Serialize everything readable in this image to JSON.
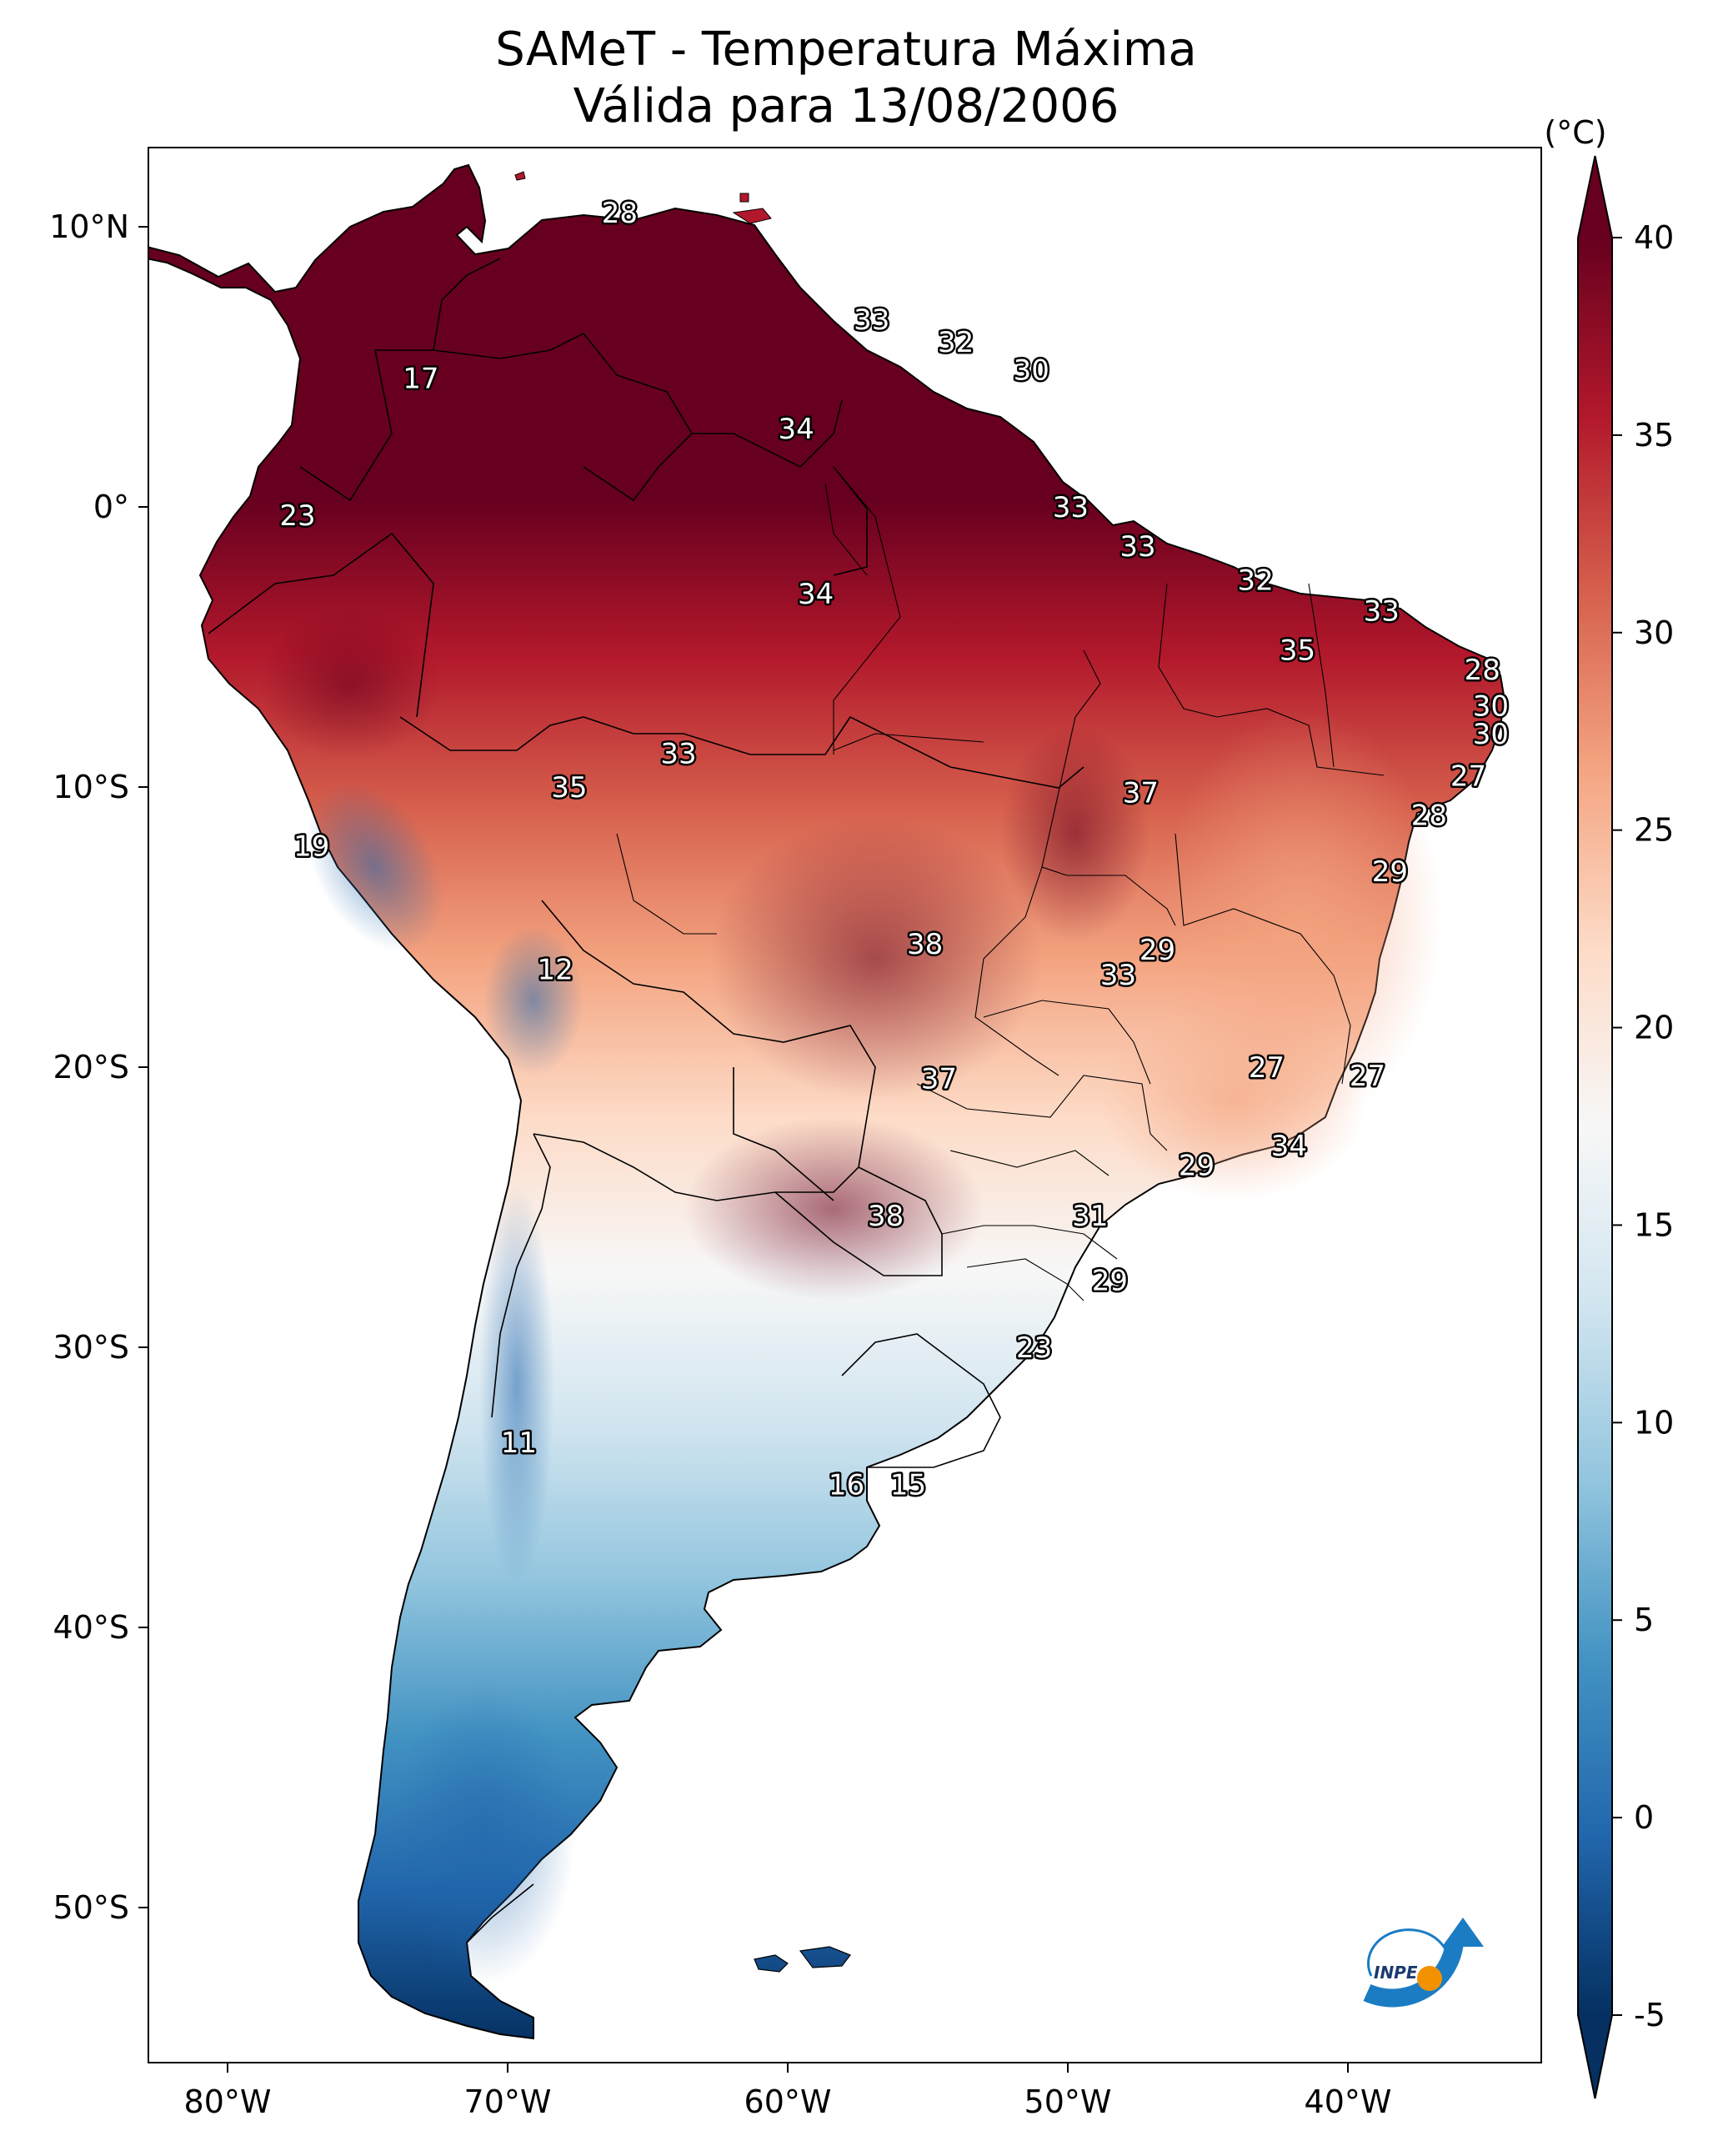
{
  "title": {
    "line1": "SAMeT - Temperatura Máxima",
    "line2": "Válida para 13/08/2006"
  },
  "colorbar": {
    "unit": "(°C)",
    "ticks": [
      "40",
      "35",
      "30",
      "25",
      "20",
      "15",
      "10",
      "5",
      "0",
      "-5"
    ],
    "tick_values": [
      40,
      35,
      30,
      25,
      20,
      15,
      10,
      5,
      0,
      -5
    ],
    "range": [
      -5,
      40
    ],
    "colors": [
      "#053061",
      "#2166ac",
      "#4393c3",
      "#92c5de",
      "#d1e5f0",
      "#f7f7f7",
      "#fddbc7",
      "#f4a582",
      "#d6604d",
      "#b2182b",
      "#67001f"
    ]
  },
  "axes": {
    "lat_labels": [
      "10°N",
      "0°",
      "10°S",
      "20°S",
      "30°S",
      "40°S",
      "50°S"
    ],
    "lon_labels": [
      "80°W",
      "70°W",
      "60°W",
      "50°W",
      "40°W"
    ]
  },
  "logo": {
    "text": "INPE"
  },
  "stations": [
    {
      "label": "28",
      "lon": -66.0,
      "lat": 10.5
    },
    {
      "label": "33",
      "lon": -57.0,
      "lat": 6.7
    },
    {
      "label": "32",
      "lon": -54.0,
      "lat": 5.9
    },
    {
      "label": "30",
      "lon": -51.3,
      "lat": 4.9
    },
    {
      "label": "17",
      "lon": -73.1,
      "lat": 4.6
    },
    {
      "label": "34",
      "lon": -59.7,
      "lat": 2.8
    },
    {
      "label": "23",
      "lon": -77.5,
      "lat": -0.3
    },
    {
      "label": "33",
      "lon": -49.9,
      "lat": 0.0
    },
    {
      "label": "33",
      "lon": -47.5,
      "lat": -1.4
    },
    {
      "label": "32",
      "lon": -43.3,
      "lat": -2.6
    },
    {
      "label": "34",
      "lon": -59.0,
      "lat": -3.1
    },
    {
      "label": "33",
      "lon": -38.8,
      "lat": -3.7
    },
    {
      "label": "35",
      "lon": -41.8,
      "lat": -5.1
    },
    {
      "label": "28",
      "lon": -35.2,
      "lat": -5.8
    },
    {
      "label": "30",
      "lon": -34.9,
      "lat": -7.1
    },
    {
      "label": "30",
      "lon": -34.9,
      "lat": -8.1
    },
    {
      "label": "33",
      "lon": -63.9,
      "lat": -8.8
    },
    {
      "label": "27",
      "lon": -35.7,
      "lat": -9.6
    },
    {
      "label": "35",
      "lon": -67.8,
      "lat": -10.0
    },
    {
      "label": "37",
      "lon": -47.4,
      "lat": -10.2
    },
    {
      "label": "28",
      "lon": -37.1,
      "lat": -11.0
    },
    {
      "label": "19",
      "lon": -77.0,
      "lat": -12.1
    },
    {
      "label": "29",
      "lon": -38.5,
      "lat": -13.0
    },
    {
      "label": "29",
      "lon": -46.8,
      "lat": -15.8
    },
    {
      "label": "38",
      "lon": -55.1,
      "lat": -15.6
    },
    {
      "label": "33",
      "lon": -48.2,
      "lat": -16.7
    },
    {
      "label": "12",
      "lon": -68.3,
      "lat": -16.5
    },
    {
      "label": "27",
      "lon": -42.9,
      "lat": -20.0
    },
    {
      "label": "27",
      "lon": -39.3,
      "lat": -20.3
    },
    {
      "label": "37",
      "lon": -54.6,
      "lat": -20.4
    },
    {
      "label": "34",
      "lon": -42.1,
      "lat": -22.8
    },
    {
      "label": "29",
      "lon": -45.4,
      "lat": -23.5
    },
    {
      "label": "31",
      "lon": -49.2,
      "lat": -25.3
    },
    {
      "label": "38",
      "lon": -56.5,
      "lat": -25.3
    },
    {
      "label": "29",
      "lon": -48.5,
      "lat": -27.6
    },
    {
      "label": "23",
      "lon": -51.2,
      "lat": -30.0
    },
    {
      "label": "11",
      "lon": -69.6,
      "lat": -33.4
    },
    {
      "label": "16",
      "lon": -57.9,
      "lat": -34.9
    },
    {
      "label": "15",
      "lon": -55.7,
      "lat": -34.9
    }
  ]
}
